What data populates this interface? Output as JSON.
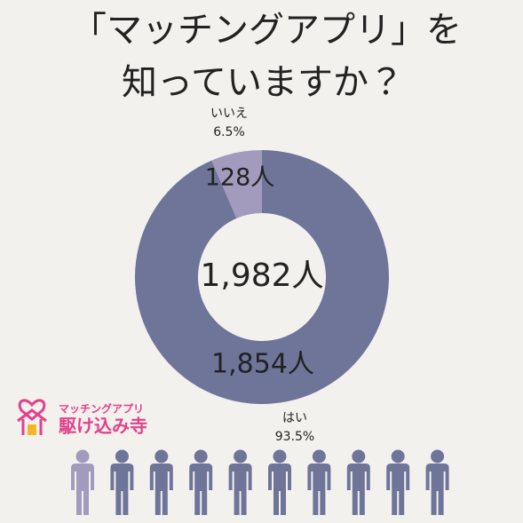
{
  "chart_data": {
    "type": "pie",
    "title": [
      "「マッチングアプリ」を",
      "知っていますか？"
    ],
    "categories": [
      "いいえ",
      "はい"
    ],
    "values": [
      6.5,
      93.5
    ],
    "value_labels": [
      "6.5%",
      "93.5%"
    ],
    "counts": [
      128,
      1854
    ],
    "count_labels": [
      "128人",
      "1,854人"
    ],
    "total_label": "1,982人",
    "colors": [
      "#a39bbd",
      "#6e7599"
    ]
  },
  "logo": {
    "tagline": "マッチングアプリ",
    "name": "駆け込み寺"
  }
}
